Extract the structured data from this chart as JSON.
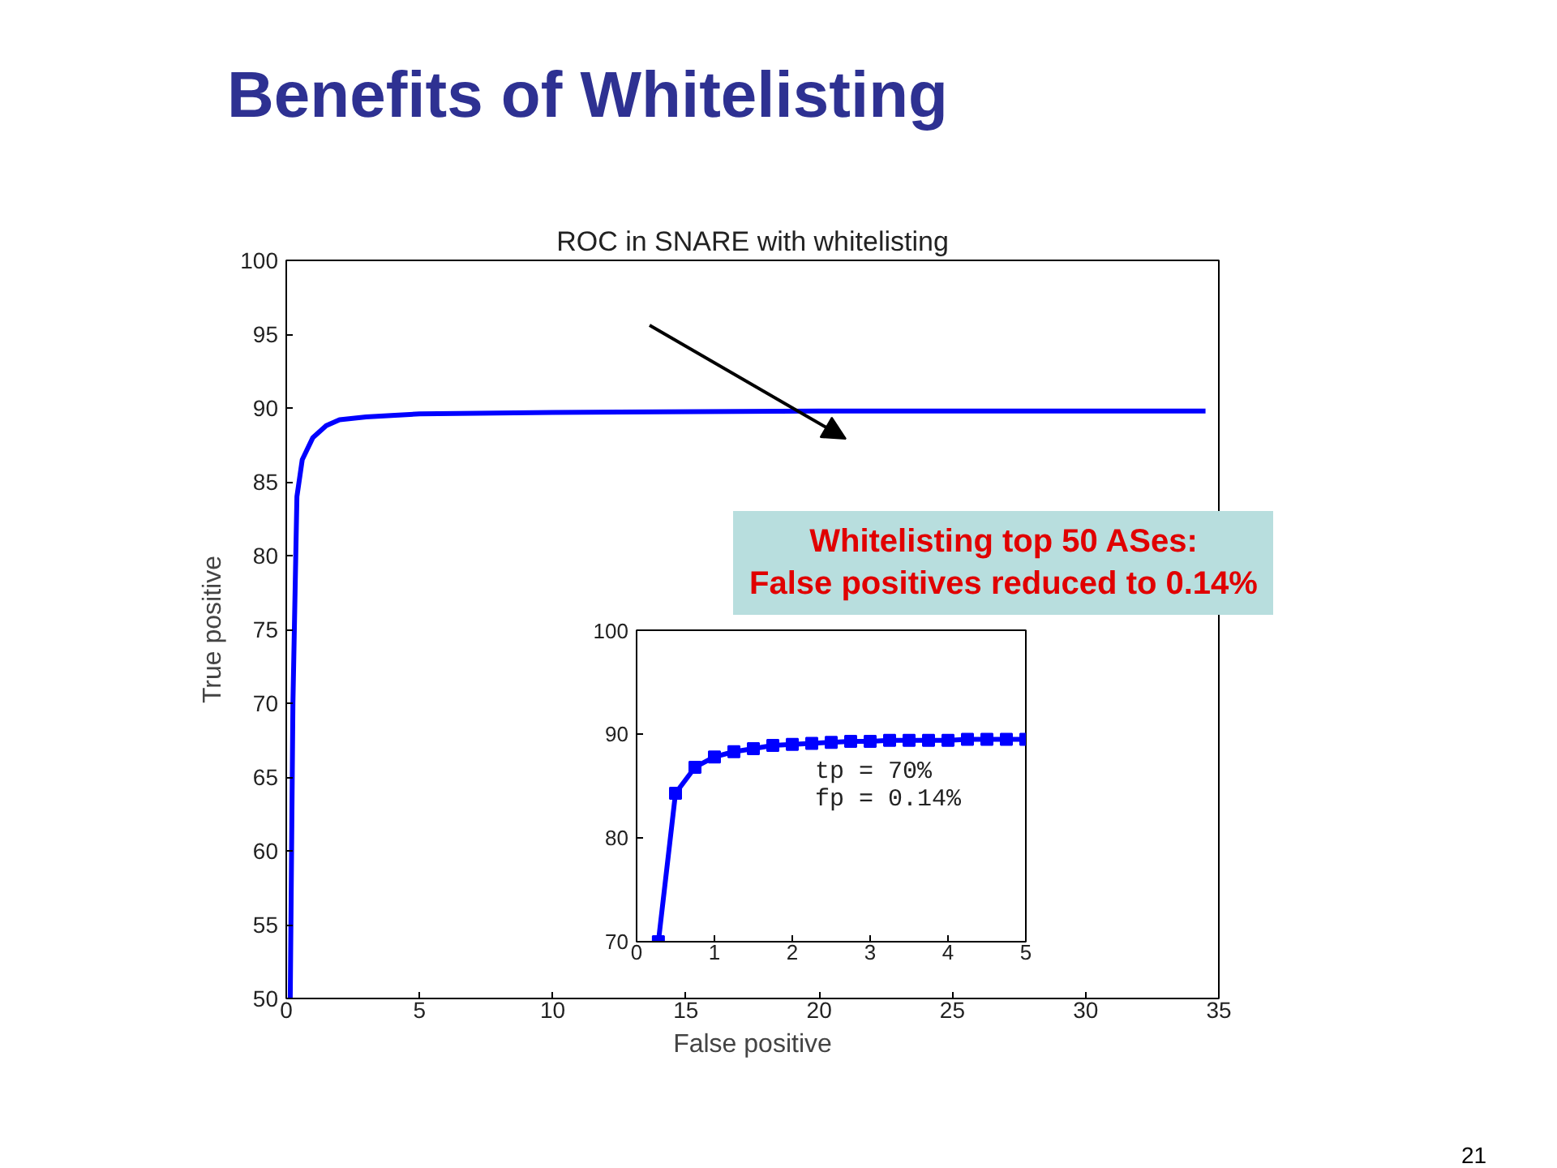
{
  "chart_data": [
    {
      "type": "line",
      "title": "Benefits of Whitelisting",
      "subtitle": "ROC in SNARE with whitelisting",
      "xlabel": "False positive",
      "ylabel": "True positive",
      "annotations": [
        "Whitelisting top 50 ASes:\nFalse positives reduced to 0.14%",
        "21"
      ],
      "xlim": [
        0,
        35
      ],
      "ylim": [
        50,
        100
      ],
      "xticks": [
        0,
        5,
        10,
        15,
        20,
        25,
        30,
        35
      ],
      "yticks": [
        50,
        55,
        60,
        65,
        70,
        75,
        80,
        85,
        90,
        95,
        100
      ],
      "series": [
        {
          "color": "#0000ff",
          "x": [
            0.15,
            0.25,
            0.4,
            0.6,
            1,
            1.5,
            2,
            3,
            5,
            10,
            20,
            34.5
          ],
          "values": [
            50,
            70,
            84,
            86.5,
            88,
            88.8,
            89.2,
            89.4,
            89.6,
            89.7,
            89.8,
            89.8
          ]
        }
      ]
    },
    {
      "type": "line",
      "marker": "square",
      "annotations": [
        "tp = 70%",
        "fp = 0.14%"
      ],
      "xlim": [
        0,
        5
      ],
      "ylim": [
        70,
        100
      ],
      "xticks": [
        0,
        1,
        2,
        3,
        4,
        5
      ],
      "yticks": [
        70,
        80,
        90,
        100
      ],
      "series": [
        {
          "color": "#0000ff",
          "x": [
            0.28,
            0.5,
            0.75,
            1,
            1.25,
            1.5,
            1.75,
            2,
            2.25,
            2.5,
            2.75,
            3,
            3.25,
            3.5,
            3.75,
            4,
            4.25,
            4.5,
            4.75,
            5
          ],
          "values": [
            70,
            84.3,
            86.8,
            87.8,
            88.3,
            88.6,
            88.9,
            89,
            89.1,
            89.2,
            89.3,
            89.3,
            89.4,
            89.4,
            89.4,
            89.4,
            89.5,
            89.5,
            89.5,
            89.5
          ]
        }
      ]
    }
  ]
}
